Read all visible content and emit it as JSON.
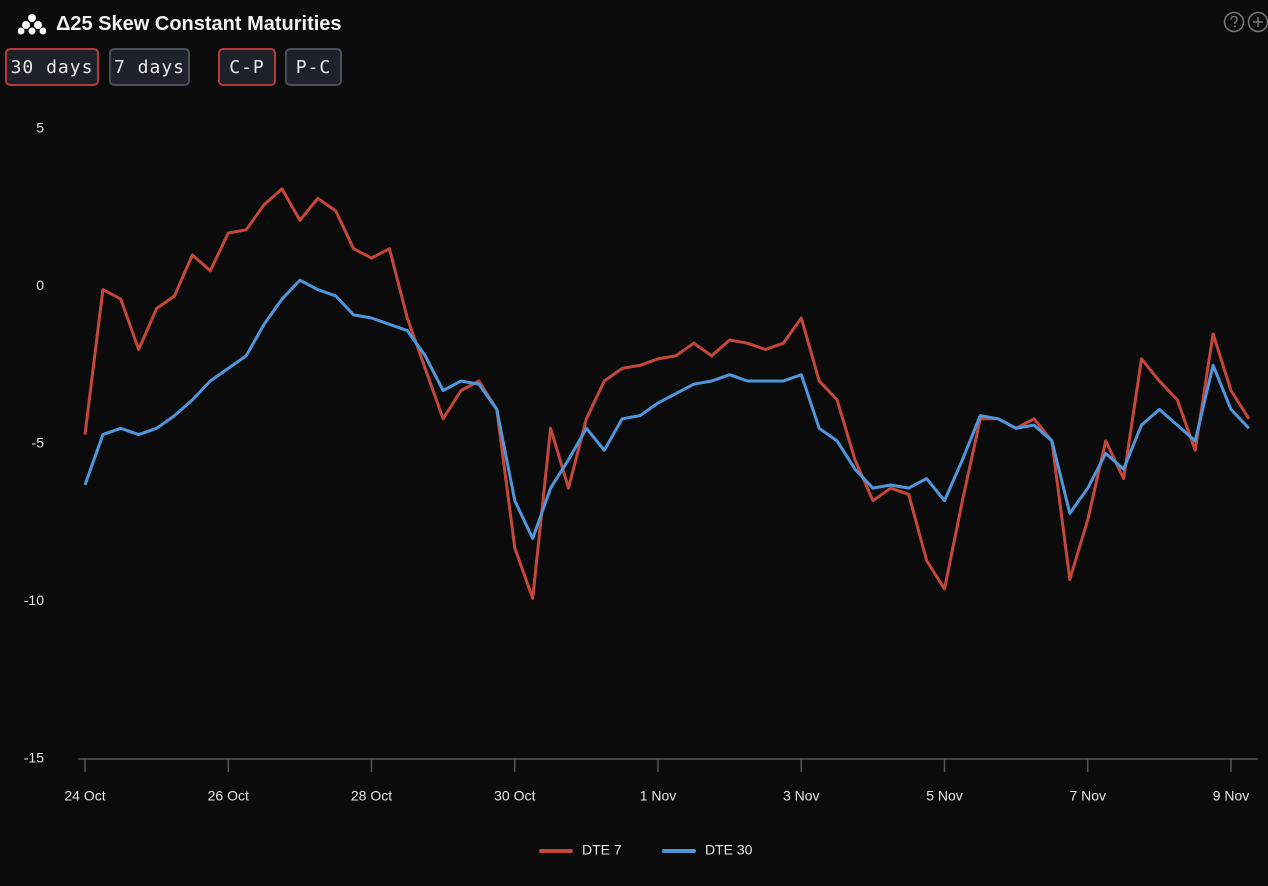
{
  "header": {
    "title": "Δ25 Skew Constant Maturities"
  },
  "buttons": [
    "30 days",
    "7 days",
    "C-P",
    "P-C"
  ],
  "chart_data": {
    "type": "line",
    "categories": [
      "24 Oct",
      null,
      null,
      null,
      null,
      null,
      null,
      null,
      "26 Oct",
      null,
      null,
      null,
      null,
      null,
      null,
      null,
      "28 Oct",
      null,
      null,
      null,
      null,
      null,
      null,
      null,
      "30 Oct",
      null,
      null,
      null,
      null,
      null,
      null,
      null,
      "1 Nov",
      null,
      null,
      null,
      null,
      null,
      null,
      null,
      "3 Nov",
      null,
      null,
      null,
      null,
      null,
      null,
      null,
      "5 Nov",
      null,
      null,
      null,
      null,
      null,
      null,
      null,
      "7 Nov",
      null,
      null,
      null,
      null,
      null,
      null,
      null,
      "9 Nov",
      null
    ],
    "series": [
      {
        "name": "DTE 7",
        "color": "#c4473a",
        "values": [
          -4.7,
          -0.1,
          -0.4,
          -2.0,
          -0.7,
          -0.3,
          1.0,
          0.5,
          1.7,
          1.8,
          2.6,
          3.1,
          2.1,
          2.8,
          2.4,
          1.2,
          0.9,
          1.2,
          -1.0,
          -2.6,
          -4.2,
          -3.3,
          -3.0,
          -3.9,
          -8.3,
          -9.9,
          -4.5,
          -6.4,
          -4.2,
          -3.0,
          -2.6,
          -2.5,
          -2.3,
          -2.2,
          -1.8,
          -2.2,
          -1.7,
          -1.8,
          -2.0,
          -1.8,
          -1.0,
          -3.0,
          -3.6,
          -5.5,
          -6.8,
          -6.4,
          -6.6,
          -8.7,
          -9.6,
          -6.8,
          -4.2,
          -4.2,
          -4.5,
          -4.2,
          -4.9,
          -9.3,
          -7.4,
          -4.9,
          -6.1,
          -2.3,
          -3.0,
          -3.6,
          -5.2,
          -1.5,
          -3.3,
          -4.2
        ]
      },
      {
        "name": "DTE 30",
        "color": "#4f97dd",
        "values": [
          -6.3,
          -4.7,
          -4.5,
          -4.7,
          -4.5,
          -4.1,
          -3.6,
          -3.0,
          -2.6,
          -2.2,
          -1.2,
          -0.4,
          0.2,
          -0.1,
          -0.3,
          -0.9,
          -1.0,
          -1.2,
          -1.4,
          -2.2,
          -3.3,
          -3.0,
          -3.1,
          -3.9,
          -6.8,
          -8.0,
          -6.4,
          -5.5,
          -4.5,
          -5.2,
          -4.2,
          -4.1,
          -3.7,
          -3.4,
          -3.1,
          -3.0,
          -2.8,
          -3.0,
          -3.0,
          -3.0,
          -2.8,
          -4.5,
          -4.9,
          -5.8,
          -6.4,
          -6.3,
          -6.4,
          -6.1,
          -6.8,
          -5.5,
          -4.1,
          -4.2,
          -4.5,
          -4.4,
          -4.9,
          -7.2,
          -6.4,
          -5.3,
          -5.8,
          -4.4,
          -3.9,
          -4.4,
          -4.9,
          -2.5,
          -3.9,
          -4.5
        ]
      }
    ],
    "ylim": [
      -15,
      5
    ],
    "yticks": [
      -15,
      -10,
      -5,
      0,
      5
    ],
    "grid": false,
    "legend": "bottom"
  }
}
